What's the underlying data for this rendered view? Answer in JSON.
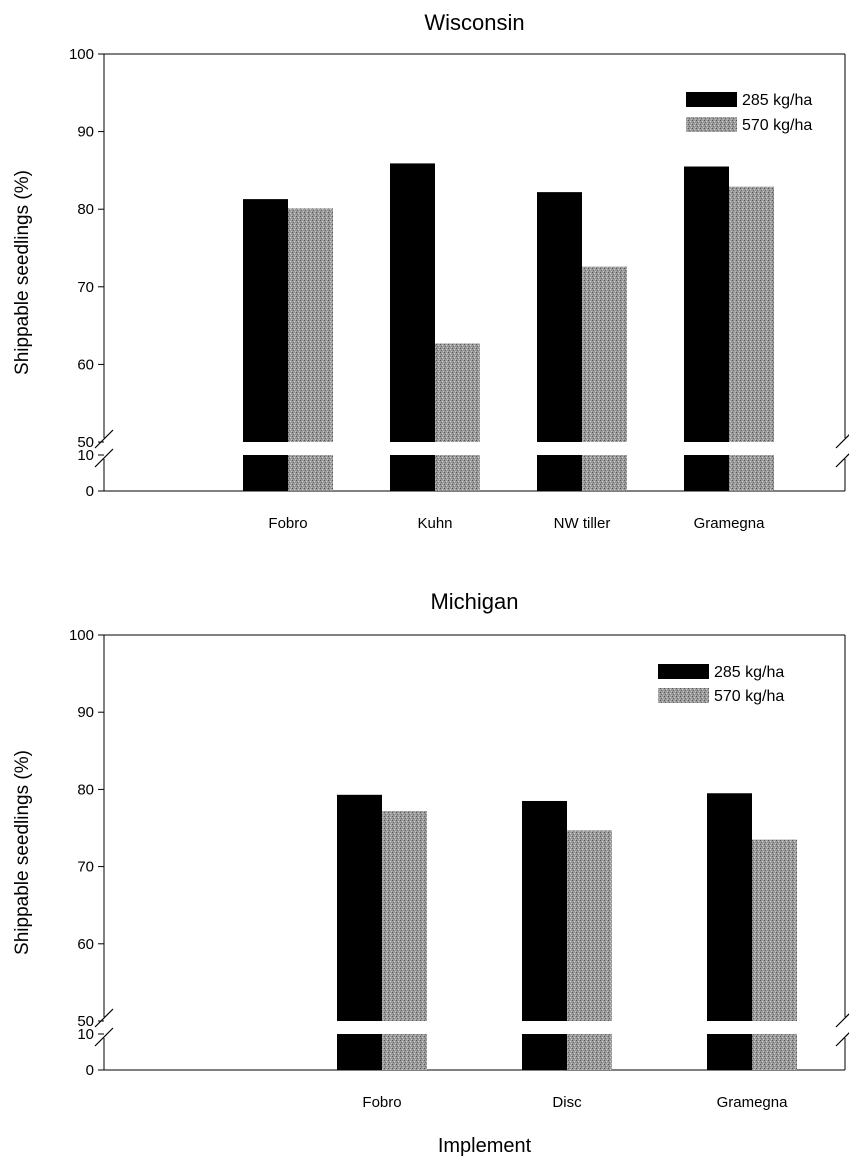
{
  "chart_data": [
    {
      "type": "bar",
      "title": "Wisconsin",
      "ylabel": "Shippable seedlings (%)",
      "xlabel": "",
      "categories": [
        "Fobro",
        "Kuhn",
        "NW tiller",
        "Gramegna"
      ],
      "series": [
        {
          "name": "285 kg/ha",
          "values": [
            81.3,
            85.9,
            82.2,
            85.5
          ],
          "color": "#000000"
        },
        {
          "name": "570 kg/ha",
          "values": [
            80.1,
            62.7,
            72.6,
            82.9
          ],
          "color": "#8a8a8a"
        }
      ],
      "ylim": [
        0,
        100
      ],
      "axis_break": [
        10,
        50
      ],
      "yticks": [
        0,
        10,
        50,
        60,
        70,
        80,
        90,
        100
      ],
      "legend_position": "top-right",
      "grid": false
    },
    {
      "type": "bar",
      "title": "Michigan",
      "ylabel": "Shippable seedlings (%)",
      "xlabel": "Implement",
      "categories": [
        "Fobro",
        "Disc",
        "Gramegna"
      ],
      "series": [
        {
          "name": "285 kg/ha",
          "values": [
            79.3,
            78.5,
            79.5
          ],
          "color": "#000000"
        },
        {
          "name": "570 kg/ha",
          "values": [
            77.2,
            74.7,
            73.5
          ],
          "color": "#8a8a8a"
        }
      ],
      "ylim": [
        0,
        100
      ],
      "axis_break": [
        10,
        50
      ],
      "yticks": [
        0,
        10,
        50,
        60,
        70,
        80,
        90,
        100
      ],
      "legend_position": "top-right",
      "grid": false
    }
  ]
}
